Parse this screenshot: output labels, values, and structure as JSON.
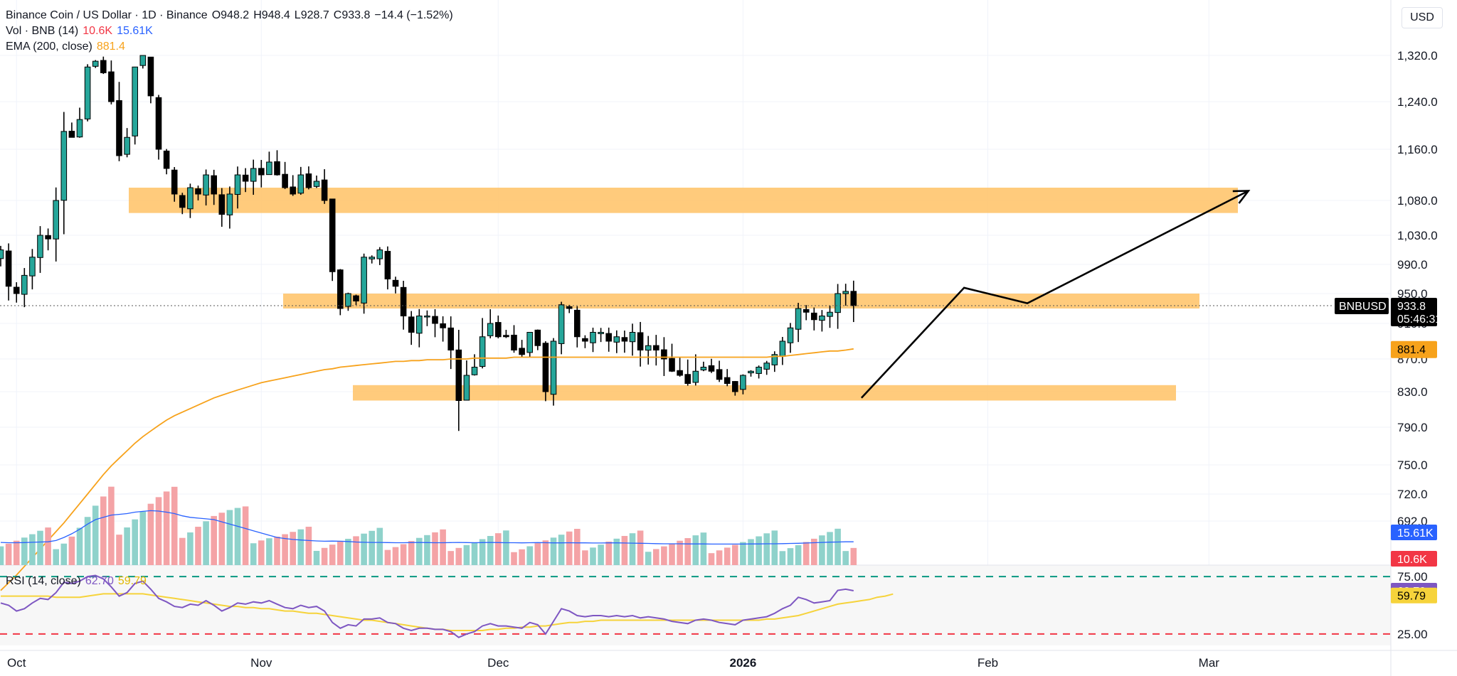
{
  "header": {
    "symbol": "Binance Coin / US Dollar · 1D · Binance",
    "open_label": "O",
    "open": "948.2",
    "high_label": "H",
    "high": "948.4",
    "low_label": "L",
    "low": "928.7",
    "close_label": "C",
    "close": "933.8",
    "change": "−14.4 (−1.52%)"
  },
  "vol_legend": {
    "label": "Vol · BNB (14)",
    "vol": "10.6K",
    "vol_ma": "15.61K"
  },
  "ema_legend": {
    "label": "EMA (200, close)",
    "value": "881.4"
  },
  "rsi_legend": {
    "label": "RSI (14, close)",
    "rsi": "62.70",
    "rsi_ma": "59.79"
  },
  "currency": "USD",
  "colors": {
    "up": "#26a69a",
    "down": "#000000",
    "vol_up": "#8fd2cb",
    "vol_down": "#f4a3a6",
    "ema": "#f7a21b",
    "zone": "#ffc56e",
    "vol_ma": "#2962ff",
    "rsi": "#7e57c2",
    "rsi_ma": "#f6d33b",
    "rsi_upper": "#089981",
    "rsi_lower": "#f23645"
  },
  "price_labels": [
    "1,320.0",
    "1,240.0",
    "1,160.0",
    "1,080.0",
    "1,030.0",
    "990.0",
    "950.0",
    "910.0",
    "870.0",
    "830.0",
    "790.0",
    "750.0",
    "720.0",
    "692.0"
  ],
  "rsi_labels": [
    "75.00",
    "25.00"
  ],
  "badges": {
    "symbol": "BNBUSD",
    "price": "933.8",
    "countdown": "05:46:31",
    "ema": "881.4",
    "vol_ma": "15.61K",
    "vol": "10.6K",
    "rsi": "62.70",
    "rsi_ma": "59.79"
  },
  "chart_data": {
    "type": "candlestick",
    "timeframe": "1D",
    "x_labels": [
      "Oct",
      "Nov",
      "Dec",
      "2026",
      "Feb",
      "Mar"
    ],
    "x_label_dates": [
      "2025-10-01",
      "2025-11-01",
      "2025-12-01",
      "2026-01-01",
      "2026-02-01",
      "2026-03-01"
    ],
    "first_date": "2025-09-29",
    "y_ticks": [
      1320,
      1240,
      1160,
      1080,
      1030,
      990,
      950,
      910,
      870,
      830,
      790,
      750,
      720,
      692
    ],
    "closes": [
      1010,
      960,
      950,
      975,
      1000,
      1030,
      1025,
      1080,
      1190,
      1180,
      1210,
      1300,
      1310,
      1290,
      1240,
      1150,
      1180,
      1300,
      1320,
      1250,
      1160,
      1130,
      1090,
      1070,
      1100,
      1090,
      1120,
      1090,
      1060,
      1090,
      1120,
      1110,
      1130,
      1120,
      1140,
      1120,
      1100,
      1090,
      1120,
      1100,
      1110,
      1080,
      980,
      930,
      950,
      940,
      1000,
      1000,
      1010,
      970,
      960,
      920,
      900,
      920,
      920,
      910,
      905,
      880,
      820,
      850,
      860,
      895,
      910,
      895,
      895,
      880,
      875,
      900,
      885,
      830,
      890,
      935,
      930,
      895,
      890,
      900,
      900,
      890,
      895,
      890,
      900,
      880,
      885,
      880,
      870,
      855,
      850,
      840,
      855,
      860,
      855,
      845,
      840,
      830,
      850,
      855,
      860,
      865,
      875,
      890,
      905,
      930,
      925,
      915,
      920,
      925,
      950,
      953,
      933.8
    ],
    "ema200": [
      620,
      628,
      636,
      645,
      654,
      663,
      672,
      681,
      690,
      700,
      710,
      720,
      730,
      740,
      749,
      757,
      765,
      773,
      780,
      786,
      792,
      798,
      803,
      807,
      811,
      815,
      819,
      823,
      826,
      829,
      832,
      835,
      838,
      841,
      843,
      845,
      847,
      849,
      851,
      853,
      855,
      857,
      858,
      860,
      861,
      862,
      863,
      864,
      865,
      866,
      867,
      867,
      868,
      868,
      869,
      869,
      869,
      870,
      870,
      870,
      871,
      871,
      871,
      871,
      871,
      872,
      872,
      872,
      872,
      872,
      872,
      872,
      872,
      872,
      872,
      872,
      872,
      872,
      872,
      872,
      872,
      872,
      872,
      872,
      872,
      872,
      872,
      872,
      872,
      872,
      872,
      872,
      872,
      872,
      872,
      872,
      872,
      872,
      873,
      873,
      874,
      875,
      876,
      877,
      878,
      879,
      879,
      880,
      881.4
    ],
    "volume_ma": [
      15.2,
      15.0,
      15.0,
      15.1,
      15.3,
      15.5,
      15.6,
      16.5,
      18.5,
      21.0,
      24.0,
      27.5,
      30.5,
      32.0,
      33.5,
      34.0,
      34.5,
      35.5,
      36.0,
      36.5,
      36.2,
      35.5,
      34.5,
      33.0,
      32.0,
      31.5,
      31.0,
      30.5,
      29.0,
      27.5,
      26.0,
      24.5,
      23.0,
      21.5,
      20.0,
      18.5,
      17.8,
      17.2,
      16.8,
      16.5,
      16.2,
      16.0,
      16.1,
      16.0,
      15.8,
      15.5,
      15.3,
      15.2,
      15.2,
      15.1,
      15.0,
      15.0,
      15.1,
      15.2,
      15.1,
      15.0,
      15.0,
      15.1,
      15.2,
      15.1,
      15.0,
      15.1,
      15.2,
      15.1,
      15.0,
      15.0,
      14.9,
      15.0,
      15.1,
      15.0,
      14.9,
      14.9,
      15.0,
      14.9,
      14.9,
      14.8,
      14.8,
      14.9,
      14.9,
      14.8,
      14.7,
      14.6,
      14.5,
      14.4,
      14.3,
      14.3,
      14.3,
      14.2,
      14.2,
      14.2,
      14.1,
      14.1,
      14.1,
      14.1,
      14.1,
      14.2,
      14.2,
      14.3,
      14.3,
      14.4,
      14.5,
      14.6,
      14.8,
      15.0,
      15.2,
      15.4,
      15.5,
      15.61,
      15.61
    ],
    "rsi": [
      52,
      50,
      45,
      47,
      52,
      56,
      55,
      61,
      70,
      69,
      71,
      75,
      76,
      73,
      66,
      58,
      61,
      69,
      71,
      64,
      56,
      53,
      49,
      48,
      51,
      50,
      54,
      50,
      45,
      48,
      52,
      51,
      53,
      52,
      54,
      51,
      48,
      47,
      50,
      48,
      49,
      45,
      35,
      30,
      33,
      32,
      38,
      38,
      39,
      35,
      34,
      30,
      28,
      30,
      30,
      29,
      29,
      27,
      22,
      25,
      27,
      32,
      34,
      32,
      32,
      31,
      30,
      35,
      33,
      25,
      36,
      47,
      45,
      41,
      40,
      41,
      41,
      40,
      41,
      40,
      41,
      39,
      40,
      39,
      38,
      36,
      35,
      34,
      37,
      38,
      37,
      35,
      34,
      33,
      37,
      38,
      39,
      40,
      43,
      47,
      50,
      57,
      55,
      52,
      53,
      54,
      63,
      64,
      62.7
    ],
    "rsi_ma": [
      58,
      58,
      58,
      58,
      58,
      58,
      58,
      57,
      57,
      57,
      57,
      58,
      59,
      60,
      60,
      60,
      60,
      60,
      60,
      59,
      58,
      57,
      56,
      55,
      54,
      53,
      52,
      51,
      50,
      49,
      49,
      48,
      48,
      47,
      47,
      46,
      45,
      45,
      44,
      43,
      43,
      42,
      41,
      40,
      39,
      38,
      37,
      37,
      36,
      35,
      34,
      33,
      32,
      31,
      30,
      29,
      29,
      28,
      28,
      28,
      28,
      28,
      29,
      29,
      30,
      30,
      31,
      31,
      32,
      32,
      33,
      34,
      35,
      35,
      36,
      36,
      37,
      37,
      37,
      37,
      37,
      37,
      37,
      37,
      37,
      37,
      37,
      37,
      37,
      37,
      37,
      37,
      37,
      37,
      37,
      37,
      37,
      38,
      38,
      39,
      40,
      41,
      43,
      45,
      47,
      49,
      51,
      52,
      53,
      54,
      55,
      57,
      58,
      59.79
    ],
    "rsi_levels": [
      75,
      25
    ],
    "rsi_ylim": [
      15,
      85
    ],
    "zones": [
      [
        1062,
        1100
      ],
      [
        930,
        950
      ],
      [
        820,
        838
      ]
    ],
    "projection_points": [
      [
        1,
        823
      ],
      [
        14,
        958
      ],
      [
        22,
        937
      ],
      [
        50,
        1095
      ]
    ],
    "last_close": 933.8,
    "ema_last": 881.4,
    "volume_last": "10.6K",
    "volume_ma_last": "15.61K"
  }
}
